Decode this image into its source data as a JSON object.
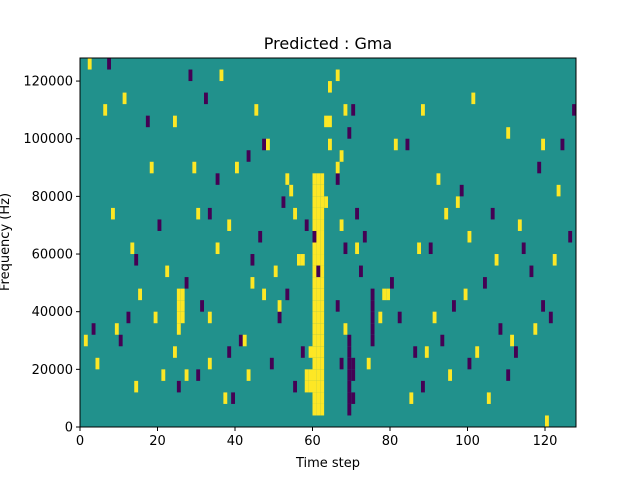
{
  "chart_data": {
    "type": "heatmap",
    "title": "Predicted : Gma",
    "xlabel": "Time step",
    "ylabel": "Frequency (Hz)",
    "xlim": [
      0,
      128
    ],
    "ylim": [
      0,
      128000
    ],
    "x_ticks": [
      0,
      20,
      40,
      60,
      80,
      100,
      120
    ],
    "y_ticks": [
      0,
      20000,
      40000,
      60000,
      80000,
      100000,
      120000
    ],
    "x_tick_labels": [
      "0",
      "20",
      "40",
      "60",
      "80",
      "100",
      "120"
    ],
    "y_tick_labels": [
      "0",
      "20000",
      "40000",
      "60000",
      "80000",
      "100000",
      "120000"
    ],
    "colormap": "viridis",
    "colors": {
      "background": "#21918c",
      "high": "#fde725",
      "low": "#440154"
    },
    "freq_bin_hz": 4000,
    "grid": false,
    "dense_region": {
      "x_range": [
        60,
        63
      ],
      "y_range": [
        4000,
        86000
      ],
      "value": "high"
    },
    "low_cells": [
      [
        69,
        4000
      ],
      [
        69,
        8000
      ],
      [
        69,
        12000
      ],
      [
        69,
        16000
      ],
      [
        69,
        20000
      ],
      [
        69,
        24000
      ],
      [
        69,
        28000
      ],
      [
        70,
        8000
      ],
      [
        70,
        16000
      ],
      [
        70,
        20000
      ],
      [
        75,
        28000
      ],
      [
        75,
        32000
      ],
      [
        75,
        36000
      ],
      [
        75,
        40000
      ],
      [
        75,
        44000
      ],
      [
        61,
        52000
      ],
      [
        60,
        64000
      ],
      [
        58,
        68000
      ],
      [
        7,
        124000
      ],
      [
        17,
        104000
      ],
      [
        28,
        120000
      ],
      [
        32,
        112000
      ],
      [
        43,
        92000
      ],
      [
        47,
        96000
      ],
      [
        69,
        100000
      ],
      [
        70,
        108000
      ],
      [
        66,
        84000
      ],
      [
        71,
        72000
      ],
      [
        73,
        64000
      ],
      [
        72,
        52000
      ],
      [
        3,
        32000
      ],
      [
        10,
        28000
      ],
      [
        12,
        36000
      ],
      [
        25,
        12000
      ],
      [
        30,
        16000
      ],
      [
        31,
        40000
      ],
      [
        38,
        24000
      ],
      [
        39,
        8000
      ],
      [
        44,
        56000
      ],
      [
        49,
        20000
      ],
      [
        51,
        36000
      ],
      [
        53,
        44000
      ],
      [
        55,
        12000
      ],
      [
        57,
        24000
      ],
      [
        66,
        40000
      ],
      [
        67,
        20000
      ],
      [
        68,
        60000
      ],
      [
        80,
        48000
      ],
      [
        82,
        36000
      ],
      [
        86,
        24000
      ],
      [
        88,
        12000
      ],
      [
        90,
        60000
      ],
      [
        93,
        28000
      ],
      [
        96,
        40000
      ],
      [
        100,
        20000
      ],
      [
        104,
        48000
      ],
      [
        108,
        32000
      ],
      [
        112,
        24000
      ],
      [
        116,
        52000
      ],
      [
        118,
        88000
      ],
      [
        121,
        36000
      ],
      [
        124,
        96000
      ],
      [
        126,
        64000
      ],
      [
        127,
        108000
      ],
      [
        14,
        56000
      ],
      [
        20,
        68000
      ],
      [
        27,
        48000
      ],
      [
        33,
        72000
      ],
      [
        35,
        84000
      ],
      [
        41,
        28000
      ],
      [
        46,
        64000
      ],
      [
        52,
        76000
      ],
      [
        84,
        96000
      ],
      [
        98,
        80000
      ],
      [
        106,
        72000
      ],
      [
        110,
        16000
      ],
      [
        114,
        60000
      ],
      [
        119,
        40000
      ]
    ],
    "high_cells": [
      [
        25,
        32000
      ],
      [
        25,
        36000
      ],
      [
        25,
        40000
      ],
      [
        25,
        44000
      ],
      [
        26,
        36000
      ],
      [
        26,
        40000
      ],
      [
        26,
        44000
      ],
      [
        78,
        44000
      ],
      [
        79,
        44000
      ],
      [
        57,
        56000
      ],
      [
        56,
        56000
      ],
      [
        58,
        12000
      ],
      [
        58,
        16000
      ],
      [
        59,
        12000
      ],
      [
        59,
        16000
      ],
      [
        59,
        24000
      ],
      [
        63,
        104000
      ],
      [
        64,
        104000
      ],
      [
        64,
        96000
      ],
      [
        66,
        88000
      ],
      [
        67,
        92000
      ],
      [
        2,
        124000
      ],
      [
        6,
        108000
      ],
      [
        11,
        112000
      ],
      [
        18,
        88000
      ],
      [
        24,
        104000
      ],
      [
        29,
        88000
      ],
      [
        36,
        120000
      ],
      [
        40,
        88000
      ],
      [
        45,
        108000
      ],
      [
        48,
        96000
      ],
      [
        53,
        84000
      ],
      [
        55,
        72000
      ],
      [
        64,
        116000
      ],
      [
        66,
        120000
      ],
      [
        68,
        108000
      ],
      [
        81,
        96000
      ],
      [
        88,
        108000
      ],
      [
        92,
        84000
      ],
      [
        97,
        76000
      ],
      [
        101,
        112000
      ],
      [
        110,
        100000
      ],
      [
        119,
        96000
      ],
      [
        123,
        80000
      ],
      [
        1,
        28000
      ],
      [
        4,
        20000
      ],
      [
        9,
        32000
      ],
      [
        15,
        44000
      ],
      [
        19,
        36000
      ],
      [
        24,
        24000
      ],
      [
        27,
        16000
      ],
      [
        33,
        20000
      ],
      [
        37,
        8000
      ],
      [
        42,
        28000
      ],
      [
        47,
        44000
      ],
      [
        51,
        40000
      ],
      [
        68,
        32000
      ],
      [
        71,
        60000
      ],
      [
        74,
        20000
      ],
      [
        77,
        36000
      ],
      [
        85,
        8000
      ],
      [
        89,
        24000
      ],
      [
        91,
        36000
      ],
      [
        95,
        16000
      ],
      [
        99,
        44000
      ],
      [
        102,
        24000
      ],
      [
        105,
        8000
      ],
      [
        111,
        28000
      ],
      [
        117,
        32000
      ],
      [
        120,
        0
      ],
      [
        8,
        72000
      ],
      [
        13,
        60000
      ],
      [
        22,
        52000
      ],
      [
        30,
        72000
      ],
      [
        35,
        60000
      ],
      [
        38,
        68000
      ],
      [
        44,
        48000
      ],
      [
        50,
        52000
      ],
      [
        54,
        80000
      ],
      [
        63,
        76000
      ],
      [
        67,
        68000
      ],
      [
        87,
        60000
      ],
      [
        94,
        72000
      ],
      [
        100,
        64000
      ],
      [
        107,
        56000
      ],
      [
        113,
        68000
      ],
      [
        122,
        56000
      ],
      [
        14,
        12000
      ],
      [
        21,
        16000
      ],
      [
        33,
        36000
      ],
      [
        43,
        16000
      ]
    ]
  }
}
